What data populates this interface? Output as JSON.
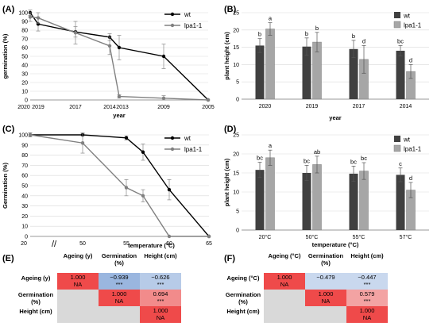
{
  "panels": {
    "A": {
      "letter": "(A)"
    },
    "B": {
      "letter": "(B)"
    },
    "C": {
      "letter": "(C)"
    },
    "D": {
      "letter": "(D)"
    },
    "E": {
      "letter": "(E)"
    },
    "F": {
      "letter": "(F)"
    }
  },
  "chart_data": [
    {
      "id": "A",
      "type": "line",
      "xlabel": "year",
      "ylabel": "germination (%)",
      "ylim": [
        0,
        100
      ],
      "yticks": [
        0,
        10,
        20,
        30,
        40,
        50,
        60,
        70,
        80,
        90,
        100
      ],
      "x_tick_labels": [
        "2020",
        "2019",
        "2017",
        "2014",
        "2013",
        "2009",
        "2005"
      ],
      "x_positions": [
        2020,
        2019,
        2017,
        2014,
        2013,
        2009,
        2005
      ],
      "series": [
        {
          "name": "wt",
          "color": "#000000",
          "values": [
            100,
            87,
            78,
            72,
            60,
            50,
            0
          ],
          "errors": [
            3,
            8,
            6,
            4,
            14,
            14,
            0
          ]
        },
        {
          "name": "lpa1-1",
          "color": "#808080",
          "values": [
            95,
            94,
            77,
            62,
            4,
            2,
            0
          ],
          "errors": [
            5,
            6,
            13,
            10,
            2,
            3,
            0
          ]
        }
      ],
      "legend": "top-right"
    },
    {
      "id": "B",
      "type": "bar",
      "xlabel": "year",
      "ylabel": "plant height (cm)",
      "ylim": [
        0,
        25
      ],
      "yticks": [
        0,
        5,
        10,
        15,
        20,
        25
      ],
      "categories": [
        "2020",
        "2019",
        "2017",
        "2014"
      ],
      "series": [
        {
          "name": "wt",
          "color": "#404040",
          "values": [
            15.5,
            15.2,
            14.5,
            14.0
          ],
          "errors": [
            2.0,
            2.5,
            2.5,
            1.5
          ],
          "letters": [
            "b",
            "b",
            "b",
            "bc"
          ]
        },
        {
          "name": "lpa1-1",
          "color": "#a6a6a6",
          "values": [
            20.3,
            16.5,
            11.5,
            8.0
          ],
          "errors": [
            1.8,
            2.8,
            4.0,
            2.0
          ],
          "letters": [
            "a",
            "b",
            "d",
            "d"
          ]
        }
      ],
      "legend": "top-right"
    },
    {
      "id": "C",
      "type": "line",
      "xlabel": "temperature (°C)",
      "ylabel": "Germination (%)",
      "ylim": [
        0,
        100
      ],
      "yticks": [
        0,
        10,
        20,
        30,
        40,
        50,
        60,
        70,
        80,
        90,
        100
      ],
      "x_tick_labels": [
        "20",
        "50",
        "55",
        "60",
        "65"
      ],
      "axis_break_symbol": "//",
      "x_positions": [
        20,
        50,
        55,
        57,
        60,
        65
      ],
      "series": [
        {
          "name": "wt",
          "color": "#000000",
          "values": [
            100,
            100,
            97,
            83,
            46,
            0
          ],
          "errors": [
            2,
            1,
            2,
            8,
            10,
            0
          ]
        },
        {
          "name": "lpa1-1",
          "color": "#808080",
          "values": [
            100,
            92,
            48,
            40,
            0,
            0
          ],
          "errors": [
            2,
            10,
            8,
            6,
            0,
            0
          ]
        }
      ],
      "legend": "top-right"
    },
    {
      "id": "D",
      "type": "bar",
      "xlabel": "temperature (°C)",
      "ylabel": "plant height (cm)",
      "ylim": [
        0,
        25
      ],
      "yticks": [
        0,
        5,
        10,
        15,
        20,
        25
      ],
      "categories": [
        "20°C",
        "50°C",
        "55°C",
        "57°C"
      ],
      "series": [
        {
          "name": "wt",
          "color": "#404040",
          "values": [
            15.8,
            15.0,
            14.8,
            14.5
          ],
          "errors": [
            2.0,
            2.0,
            2.0,
            1.8
          ],
          "letters": [
            "bc",
            "bc",
            "bc",
            "c"
          ]
        },
        {
          "name": "lpa1-1",
          "color": "#a6a6a6",
          "values": [
            19.0,
            17.2,
            15.5,
            10.5
          ],
          "errors": [
            2.0,
            2.2,
            2.2,
            2.0
          ],
          "letters": [
            "a",
            "ab",
            "bc",
            "d"
          ]
        }
      ],
      "legend": "top-right"
    },
    {
      "id": "E",
      "type": "table",
      "row_labels": [
        "Ageing (y)",
        "Germination (%)",
        "Height (cm)"
      ],
      "col_labels": [
        "Ageing (y)",
        "Germination (%)",
        "Height (cm)"
      ],
      "cells": [
        [
          {
            "r": "1.000",
            "p": "NA"
          },
          {
            "r": "−0.939",
            "p": "***"
          },
          {
            "r": "−0.626",
            "p": "***"
          }
        ],
        [
          null,
          {
            "r": "1.000",
            "p": "NA"
          },
          {
            "r": "0.694",
            "p": "***"
          }
        ],
        [
          null,
          null,
          {
            "r": "1.000",
            "p": "NA"
          }
        ]
      ]
    },
    {
      "id": "F",
      "type": "table",
      "row_labels": [
        "Ageing (°C)",
        "Germination (%)",
        "Height (cm)"
      ],
      "col_labels": [
        "Ageing (°C)",
        "Germination (%)",
        "Height (cm)"
      ],
      "cells": [
        [
          {
            "r": "1.000",
            "p": "NA"
          },
          {
            "r": "−0.479",
            "p": ""
          },
          {
            "r": "−0.447",
            "p": "***"
          }
        ],
        [
          null,
          {
            "r": "1.000",
            "p": "NA"
          },
          {
            "r": "0.579",
            "p": "***"
          }
        ],
        [
          null,
          null,
          {
            "r": "1.000",
            "p": "NA"
          }
        ]
      ]
    }
  ]
}
